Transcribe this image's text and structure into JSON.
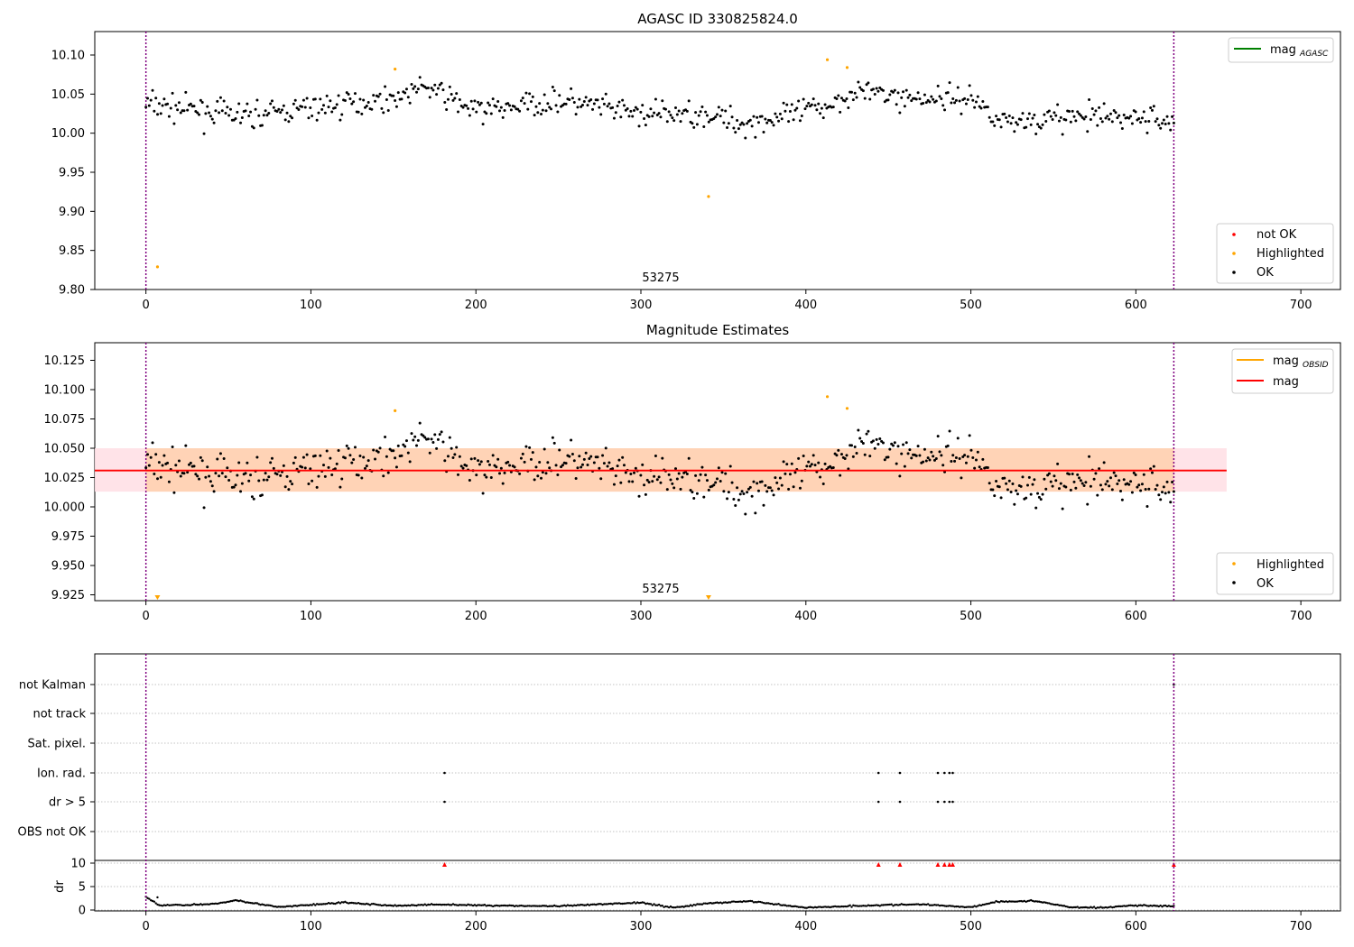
{
  "colors": {
    "ok": "#000000",
    "highlighted": "#ffa500",
    "not_ok": "#ff0000",
    "mag_agasc_line": "#008000",
    "mag_line": "#ff0000",
    "mag_obsid_line": "#ffa500",
    "band_inner": "#ffd2b3",
    "band_outer": "#ffe0e6",
    "window_line": "#800080",
    "grid": "#b0b0b0"
  },
  "chart_data": [
    {
      "type": "scatter",
      "title": "AGASC ID 330825824.0",
      "xlim": [
        -31,
        724
      ],
      "ylim": [
        9.8,
        10.13
      ],
      "xticks": [
        "0",
        "100",
        "200",
        "300",
        "400",
        "500",
        "600",
        "700"
      ],
      "yticks": [
        "9.80",
        "9.85",
        "9.90",
        "9.95",
        "10.00",
        "10.05",
        "10.10"
      ],
      "annotation": "53275",
      "vlines": [
        0,
        623
      ],
      "legend_lines": [
        {
          "label": "mag",
          "subscript": "AGASC",
          "color": "#008000"
        }
      ],
      "legend_markers": [
        {
          "label": "not OK",
          "color": "#ff0000"
        },
        {
          "label": "Highlighted",
          "color": "#ffa500"
        },
        {
          "label": "OK",
          "color": "#000000"
        }
      ],
      "highlighted_points": [
        [
          7,
          9.829
        ],
        [
          151,
          10.082
        ],
        [
          341,
          9.919
        ],
        [
          413,
          10.094
        ],
        [
          425,
          10.084
        ]
      ],
      "ok_series": {
        "x_start": 0,
        "x_end": 623,
        "count": 620,
        "trend": [
          [
            0,
            10.037
          ],
          [
            60,
            10.022
          ],
          [
            100,
            10.032
          ],
          [
            150,
            10.045
          ],
          [
            170,
            10.06
          ],
          [
            200,
            10.028
          ],
          [
            250,
            10.042
          ],
          [
            300,
            10.024
          ],
          [
            340,
            10.025
          ],
          [
            360,
            10.012
          ],
          [
            390,
            10.022
          ],
          [
            415,
            10.037
          ],
          [
            430,
            10.055
          ],
          [
            460,
            10.045
          ],
          [
            500,
            10.045
          ],
          [
            520,
            10.015
          ],
          [
            560,
            10.02
          ],
          [
            600,
            10.02
          ],
          [
            623,
            10.015
          ]
        ],
        "scatter": 0.016
      }
    },
    {
      "type": "scatter",
      "title": "Magnitude Estimates",
      "xlim": [
        -31,
        724
      ],
      "ylim": [
        9.92,
        10.14
      ],
      "xticks": [
        "0",
        "100",
        "200",
        "300",
        "400",
        "500",
        "600",
        "700"
      ],
      "yticks": [
        "9.925",
        "9.950",
        "9.975",
        "10.000",
        "10.025",
        "10.050",
        "10.075",
        "10.100",
        "10.125"
      ],
      "annotation": "53275",
      "vlines": [
        0,
        623
      ],
      "mag_line": 10.031,
      "band_inner": {
        "x": [
          0,
          623
        ],
        "y": [
          10.013,
          10.05
        ]
      },
      "band_outer": {
        "x": [
          -31,
          655
        ],
        "y": [
          10.013,
          10.05
        ]
      },
      "legend_lines": [
        {
          "label": "mag",
          "subscript": "OBSID",
          "color": "#ffa500"
        },
        {
          "label": "mag",
          "subscript": "",
          "color": "#ff0000"
        }
      ],
      "legend_markers": [
        {
          "label": "Highlighted",
          "color": "#ffa500"
        },
        {
          "label": "OK",
          "color": "#000000"
        }
      ],
      "highlighted_points": [
        [
          151,
          10.082
        ],
        [
          413,
          10.094
        ],
        [
          425,
          10.084
        ]
      ],
      "clipped_markers": [
        7,
        341
      ]
    },
    {
      "type": "scatter",
      "title": "",
      "xlim": [
        -31,
        724
      ],
      "xticks": [
        "0",
        "100",
        "200",
        "300",
        "400",
        "500",
        "600",
        "700"
      ],
      "vlines": [
        0,
        623
      ],
      "flag_rows": [
        "not Kalman",
        "not track",
        "Sat. pixel.",
        "Ion. rad.",
        "dr > 5",
        "OBS not OK"
      ],
      "flag_points": {
        "Ion. rad.": [
          181,
          444,
          457,
          480,
          484,
          487,
          489
        ],
        "dr > 5": [
          181,
          444,
          457,
          480,
          484,
          487,
          489
        ],
        "not Kalman": [
          623
        ]
      },
      "dr_ylabel": "dr",
      "dr_yticks": [
        "0",
        "5",
        "10"
      ],
      "dr_ylim": [
        0,
        10
      ],
      "dr_over_limit": [
        181,
        444,
        457,
        480,
        484,
        487,
        489,
        623
      ],
      "dr_trend": [
        [
          0,
          2.8
        ],
        [
          8,
          1.0
        ],
        [
          40,
          1.2
        ],
        [
          55,
          2.1
        ],
        [
          60,
          1.8
        ],
        [
          80,
          0.6
        ],
        [
          120,
          1.6
        ],
        [
          150,
          0.9
        ],
        [
          180,
          1.2
        ],
        [
          200,
          1.0
        ],
        [
          250,
          0.8
        ],
        [
          300,
          1.6
        ],
        [
          320,
          0.5
        ],
        [
          340,
          1.4
        ],
        [
          365,
          1.9
        ],
        [
          400,
          0.5
        ],
        [
          440,
          1.0
        ],
        [
          470,
          1.2
        ],
        [
          500,
          0.6
        ],
        [
          516,
          1.8
        ],
        [
          540,
          1.9
        ],
        [
          560,
          0.6
        ],
        [
          580,
          0.5
        ],
        [
          600,
          1.0
        ],
        [
          623,
          0.8
        ]
      ]
    }
  ]
}
